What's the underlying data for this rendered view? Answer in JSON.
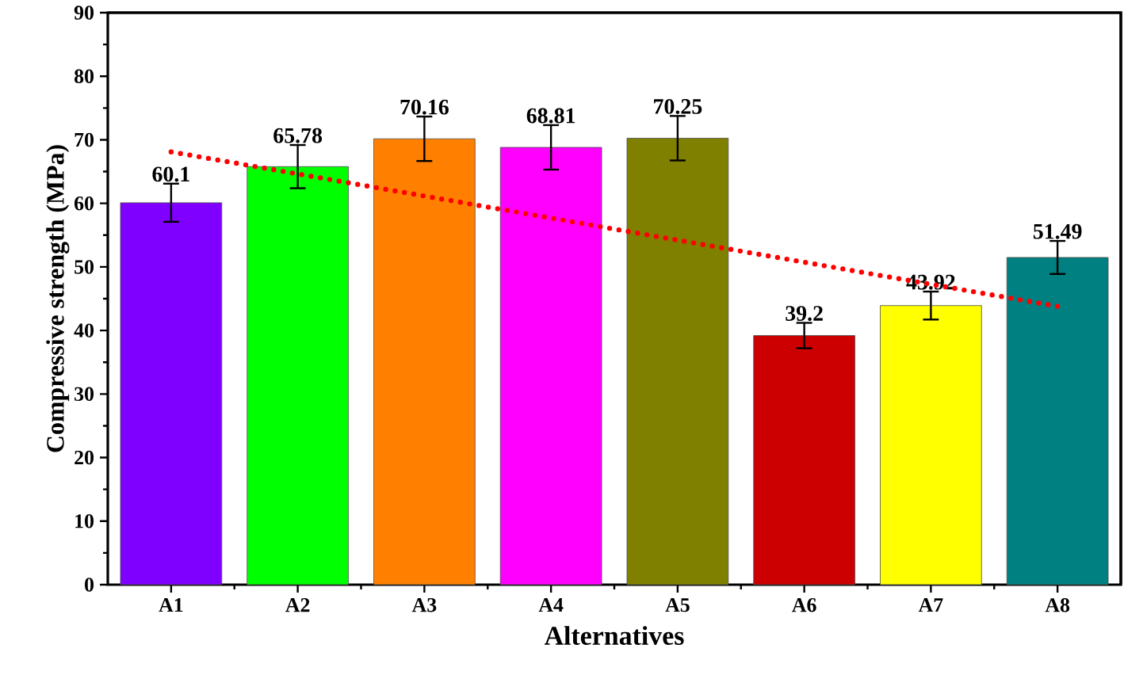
{
  "chart_data": {
    "type": "bar",
    "xlabel": "Alternatives",
    "ylabel": "Compressive strength (MPa)",
    "categories": [
      "A1",
      "A2",
      "A3",
      "A4",
      "A5",
      "A6",
      "A7",
      "A8"
    ],
    "values": [
      60.1,
      65.78,
      70.16,
      68.81,
      70.25,
      39.2,
      43.92,
      51.49
    ],
    "colors": [
      "#8000ff",
      "#00ff00",
      "#ff8000",
      "#ff00ff",
      "#808000",
      "#cc0000",
      "#ffff00",
      "#008080"
    ],
    "errors": [
      3.0,
      3.4,
      3.5,
      3.5,
      3.5,
      2.0,
      2.2,
      2.6
    ],
    "value_labels": [
      "60.1",
      "65.78",
      "70.16",
      "68.81",
      "70.25",
      "39.2",
      "43.92",
      "51.49"
    ],
    "series": [
      {
        "type": "line",
        "color": "#ff0000",
        "line_style": "dotted",
        "x": [
          "A1",
          "A8"
        ],
        "values": [
          68.1,
          43.8
        ]
      }
    ],
    "ylim": [
      0,
      90
    ],
    "yticks": [
      0,
      10,
      20,
      30,
      40,
      50,
      60,
      70,
      80,
      90
    ],
    "grid": false
  }
}
